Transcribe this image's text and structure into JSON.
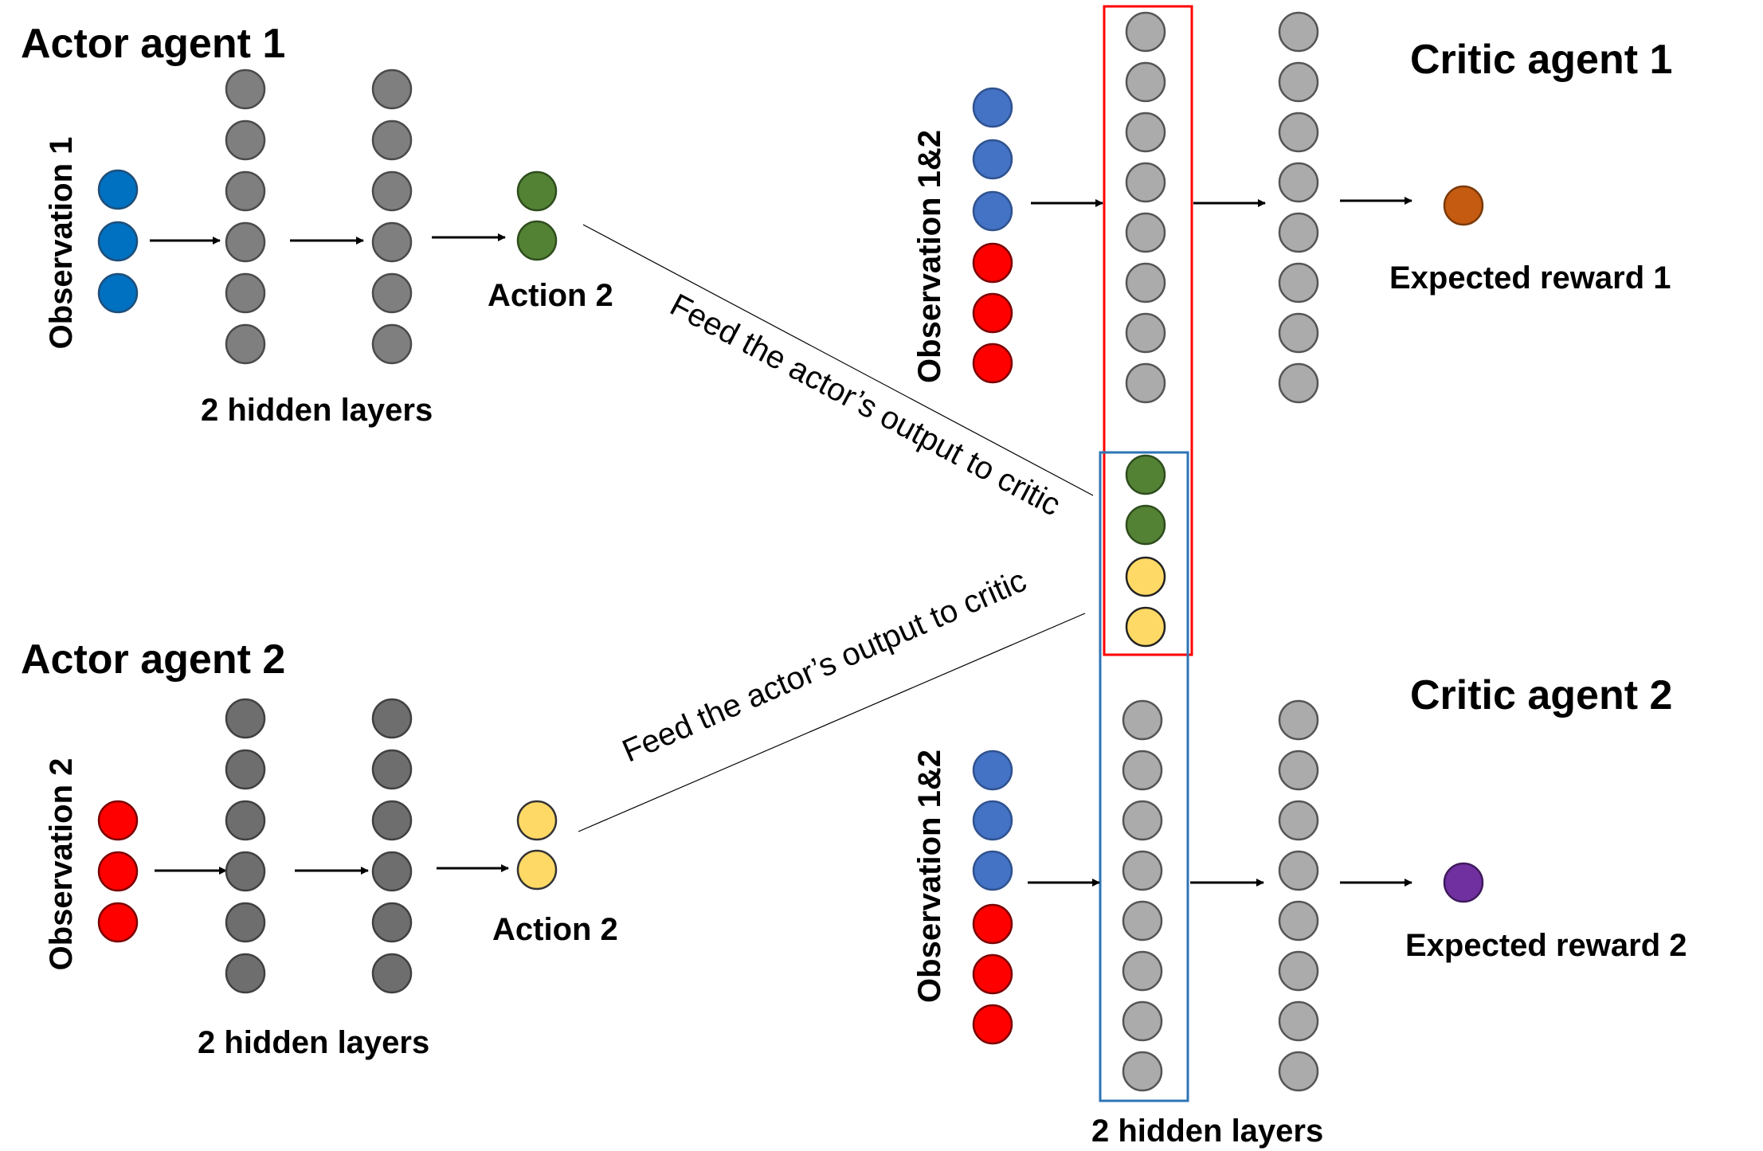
{
  "colors": {
    "obs_blue": "#4472C4",
    "obs_blue_actor": "#0070C0",
    "obs_red": "#FF0000",
    "actor_hidden": "#7F7F7F",
    "actor2_hidden": "#6E6E6E",
    "critic_hidden": "#ABABAB",
    "action_green": "#548235",
    "action_yellow": "#FFD966",
    "reward1": "#C55A11",
    "reward2": "#7030A0",
    "box_red": "#FF0000",
    "box_blue": "#2E75B6"
  },
  "actor1": {
    "title": "Actor agent 1",
    "observation_label": "Observation 1",
    "hidden_label": "2 hidden layers",
    "action_label": "Action 2"
  },
  "actor2": {
    "title": "Actor agent 2",
    "observation_label": "Observation 2",
    "hidden_label": "2 hidden layers",
    "action_label": "Action 2"
  },
  "critic1": {
    "title": "Critic agent 1",
    "observation_label": "Observation 1&2",
    "output_label": "Expected reward 1"
  },
  "critic2": {
    "title": "Critic agent 2",
    "observation_label": "Observation 1&2",
    "output_label": "Expected reward 2"
  },
  "critic_hidden_label": "2 hidden layers",
  "feed_label_1": "Feed the actor’s output to critic",
  "feed_label_2": "Feed the actor’s output to critic"
}
